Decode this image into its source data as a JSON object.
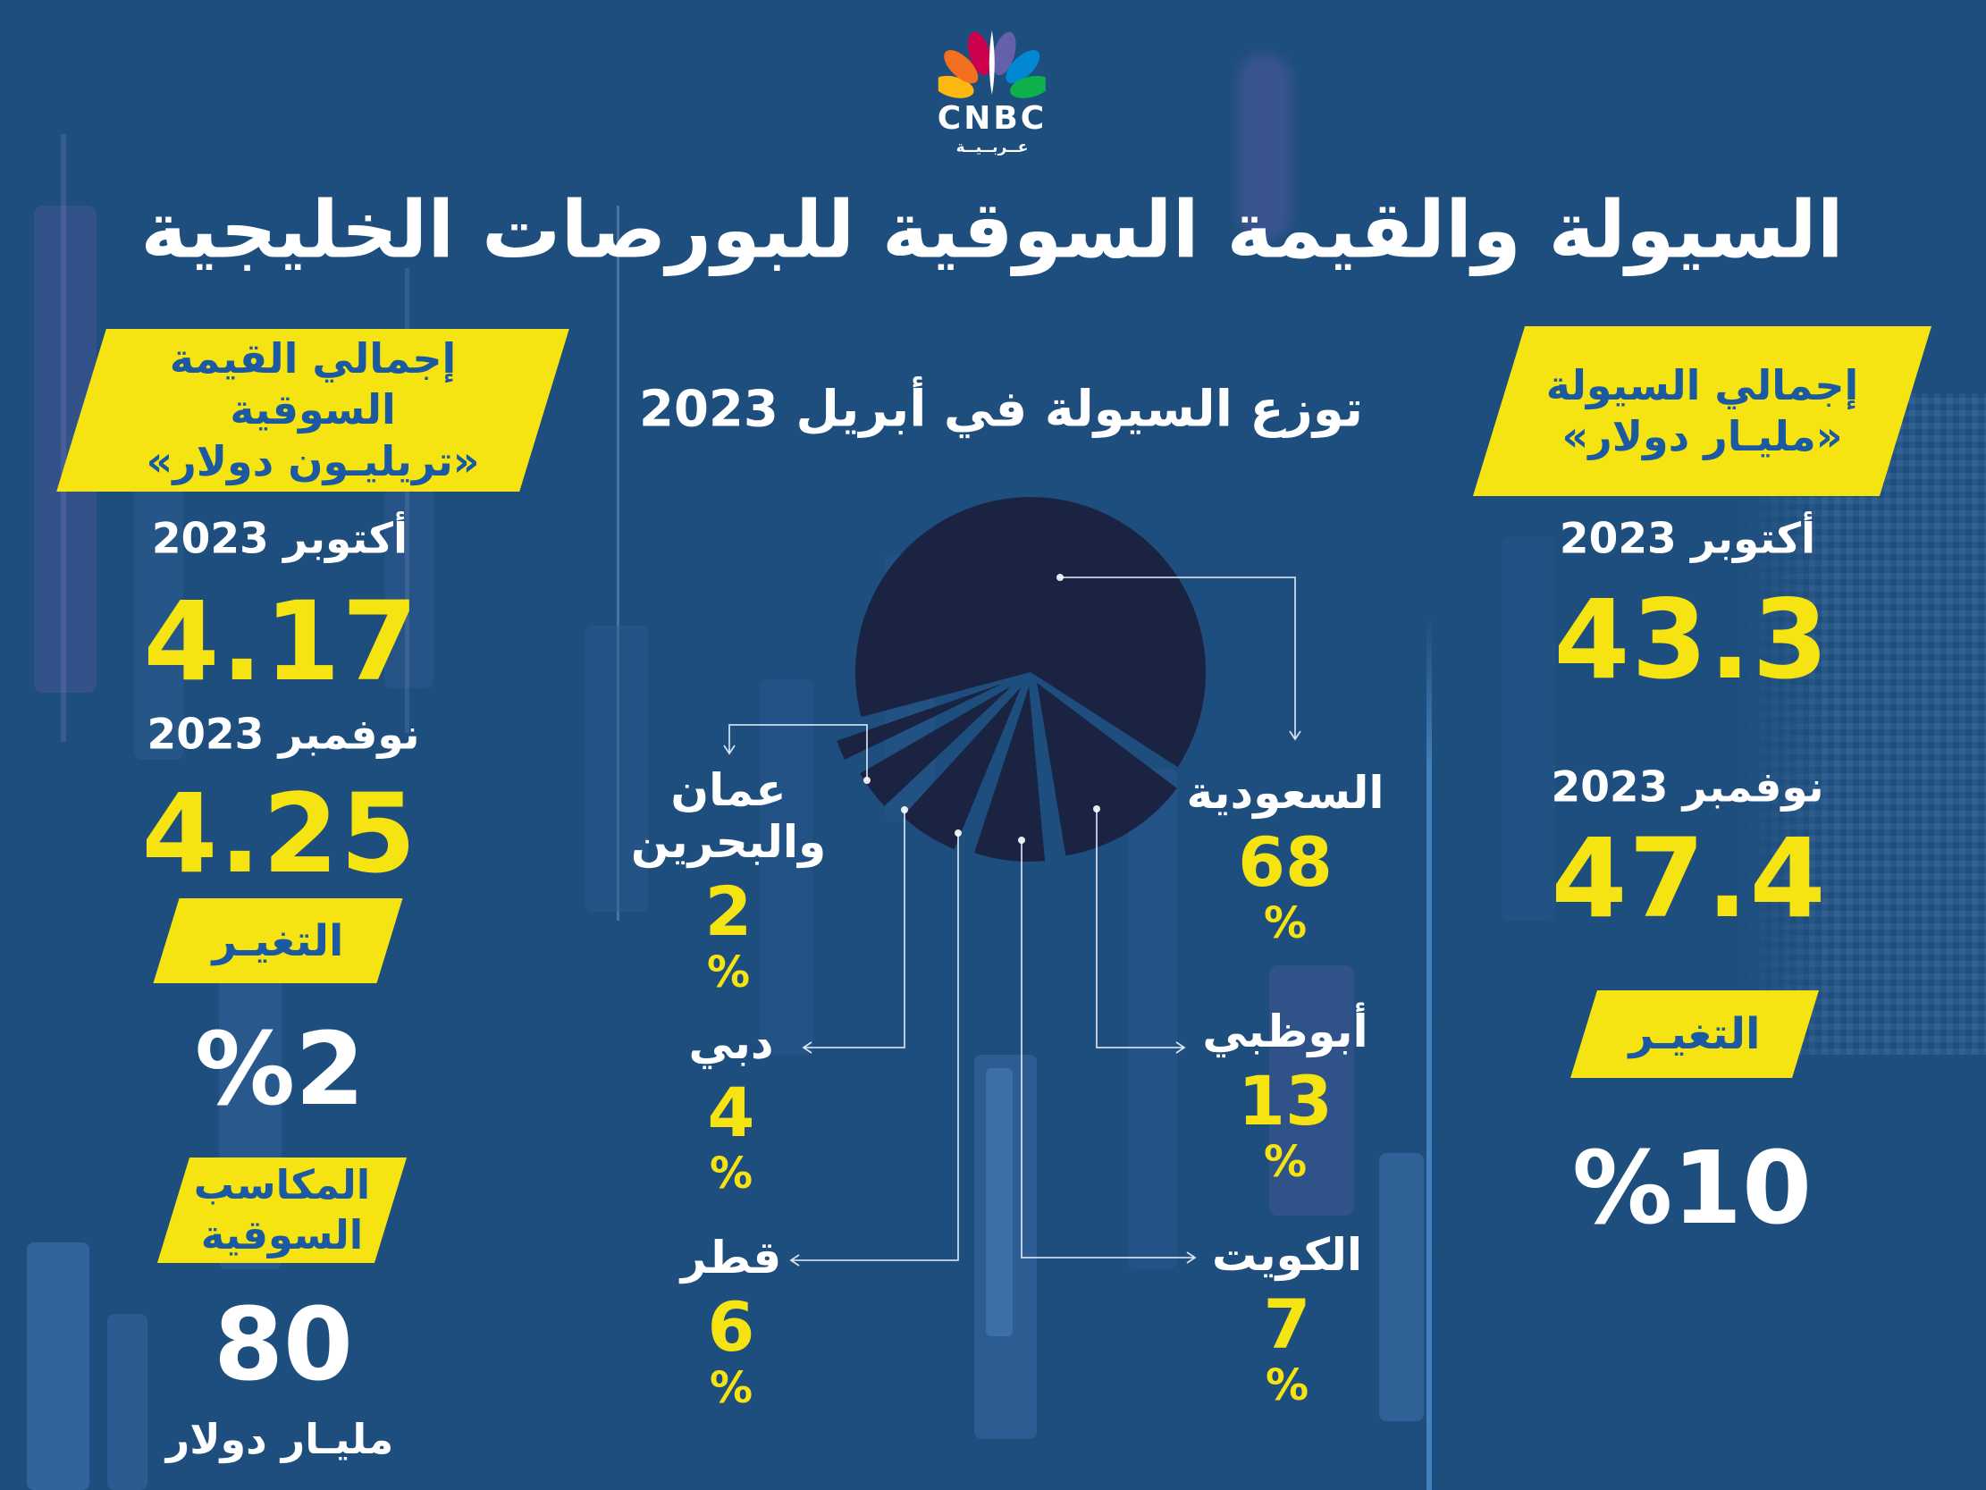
{
  "brand": {
    "name": "CNBC",
    "arabic": "عــربــيــة"
  },
  "title": "السيولة والقيمة السوقية للبورصات الخليجية",
  "left_panel": {
    "banner_line1": "إجمالي القيمة السوقية",
    "banner_line2": "«تريليـون دولار»",
    "period1_label": "أكتوبر 2023",
    "period1_value": "4.17",
    "period2_label": "نوفمبر 2023",
    "period2_value": "4.25",
    "change_label": "التغيـر",
    "change_value": "%2",
    "gains_line1": "المكاسب",
    "gains_line2": "السوقية",
    "gains_value": "80",
    "gains_unit": "مليـار دولار"
  },
  "right_panel": {
    "banner_line1": "إجمالي السيولة",
    "banner_line2": "«مليـار دولار»",
    "period1_label": "أكتوبر 2023",
    "period1_value": "43.3",
    "period2_label": "نوفمبر 2023",
    "period2_value": "47.4",
    "change_label": "التغيـر",
    "change_value": "%10"
  },
  "chart_data": {
    "type": "pie",
    "title": "توزع السيولة في أبريل 2023",
    "unit": "%",
    "legend_position": "around",
    "slices": [
      {
        "label": "السعودية",
        "value": 68
      },
      {
        "label": "أبوظبي",
        "value": 13
      },
      {
        "label": "الكويت",
        "value": 7
      },
      {
        "label": "قطر",
        "value": 6
      },
      {
        "label": "دبي",
        "value": 4
      },
      {
        "label": "عمان والبحرين",
        "value": 2
      }
    ],
    "colors": {
      "background": "#1E4E7D",
      "slice": "#1B2342",
      "accent_yellow": "#F5E411",
      "banner_text_blue": "#1B5AA0",
      "label_text": "#FFFFFF"
    }
  }
}
